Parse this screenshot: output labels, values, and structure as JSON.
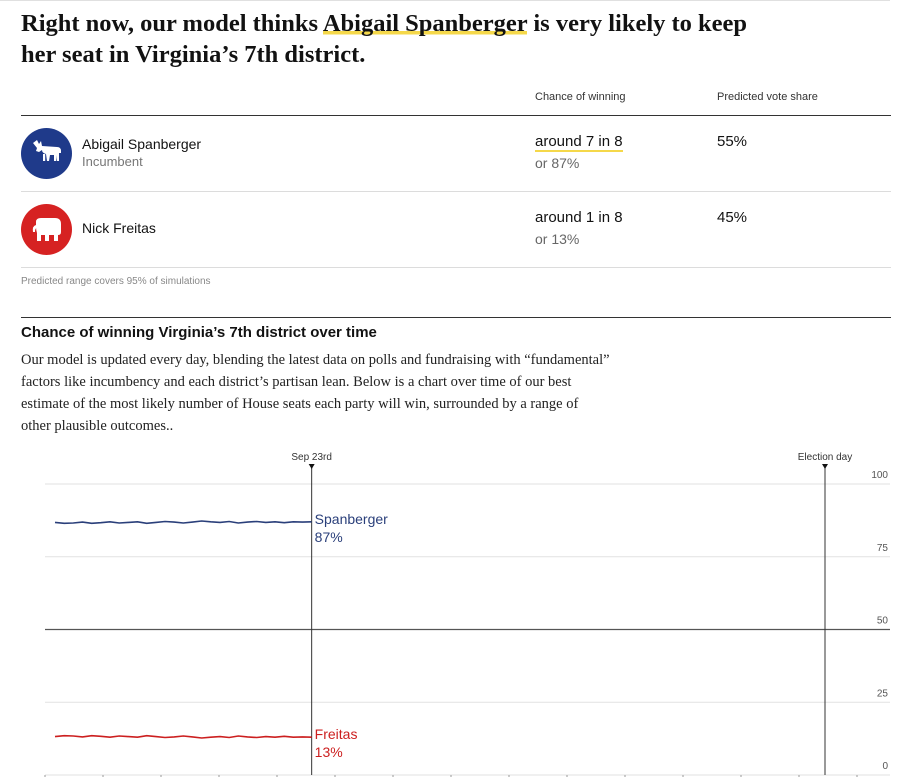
{
  "headline": {
    "prefix": "Right now, our model thinks ",
    "bold1": "Abigail Spanberger",
    "mid": " is very likely to keep her seat",
    "suffix": " in Virginia’s 7th district."
  },
  "table": {
    "col_chance": "Chance of winning",
    "col_share": "Predicted vote share",
    "candidates": [
      {
        "name": "Abigail Spanberger",
        "subtitle": "Incumbent",
        "chance_fraction": "around 7 in 8",
        "chance_pct": "or 87%",
        "vote_share": "55%",
        "party_icon": "donkey-icon",
        "color": "#1f3a8a"
      },
      {
        "name": "Nick Freitas",
        "subtitle": "",
        "chance_fraction": "around 1 in 8",
        "chance_pct": "or 13%",
        "vote_share": "45%",
        "party_icon": "elephant-icon",
        "color": "#d62222"
      }
    ],
    "note": "Predicted range covers 95% of simulations"
  },
  "section": {
    "title": "Chance of winning Virginia’s 7th district over time",
    "description": "Our model is updated every day, blending the latest data on polls and fundraising with “fundamental” factors like incumbency and each district’s partisan lean. Below is a chart over time of our best estimate of the most likely number of House seats each party will win, surrounded by a range of other plausible outcomes.."
  },
  "chart_data": {
    "type": "line",
    "ylim": [
      0,
      100
    ],
    "yticks": [
      "0",
      "25",
      "50",
      "75",
      "100"
    ],
    "markers": [
      {
        "label": "Sep 23rd",
        "x_index": 28
      },
      {
        "label": "Election day",
        "x_index": 84
      }
    ],
    "x_count": 91,
    "series": [
      {
        "name": "Spanberger",
        "value_label": "87%",
        "color": "#2a3f7a",
        "values": [
          86.8,
          86.5,
          86.6,
          86.9,
          86.5,
          86.7,
          87.0,
          86.6,
          86.8,
          87.0,
          86.5,
          86.8,
          87.1,
          86.9,
          86.6,
          86.9,
          87.3,
          87.0,
          86.8,
          87.1,
          86.6,
          86.9,
          87.1,
          86.8,
          87.0,
          86.7,
          87.0,
          86.9,
          87.0
        ]
      },
      {
        "name": "Freitas",
        "value_label": "13%",
        "color": "#cc1f1f",
        "values": [
          13.2,
          13.5,
          13.4,
          13.1,
          13.5,
          13.3,
          13.0,
          13.4,
          13.2,
          13.0,
          13.5,
          13.2,
          12.9,
          13.1,
          13.4,
          13.1,
          12.7,
          13.0,
          13.2,
          12.9,
          13.4,
          13.1,
          12.9,
          13.2,
          13.0,
          13.3,
          13.0,
          13.1,
          13.0
        ]
      }
    ]
  }
}
